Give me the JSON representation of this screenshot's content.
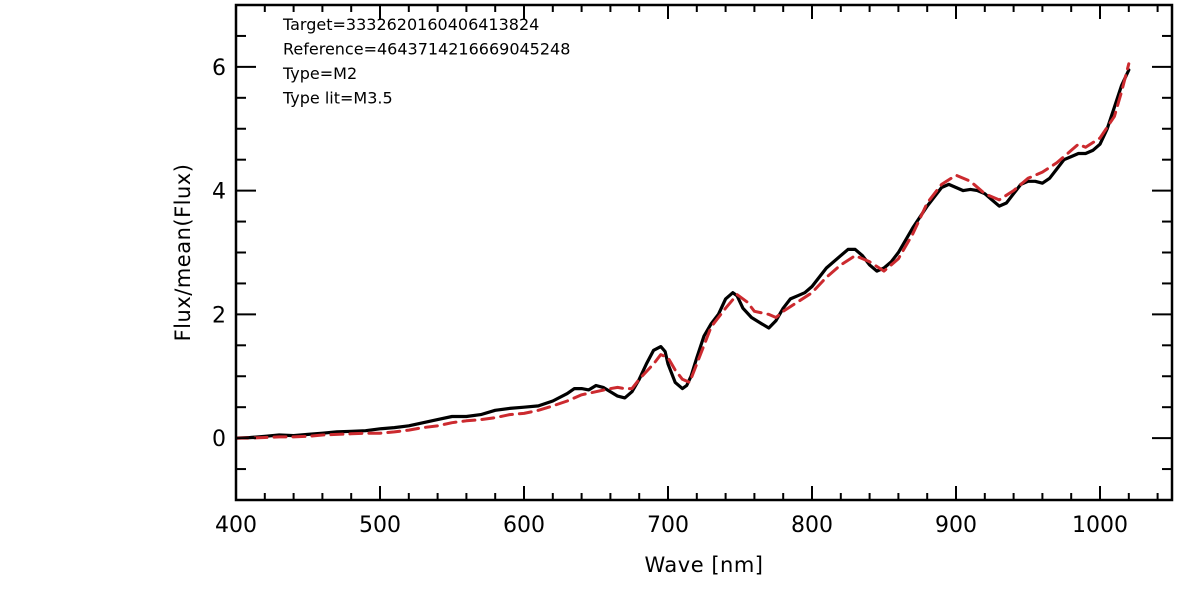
{
  "chart_data": {
    "type": "line",
    "xlabel": "Wave [nm]",
    "ylabel": "Flux/mean(Flux)",
    "xlim": [
      400,
      1050
    ],
    "ylim": [
      -1,
      7
    ],
    "xticks": [
      400,
      500,
      600,
      700,
      800,
      900,
      1000
    ],
    "xtick_labels": [
      "400",
      "500",
      "600",
      "700",
      "800",
      "900",
      "1000"
    ],
    "yticks": [
      0,
      2,
      4,
      6
    ],
    "ytick_labels": [
      "0",
      "2",
      "4",
      "6"
    ],
    "grid": false,
    "legend": "none",
    "annotations": [
      "Target=3332620160406413824",
      "Reference=4643714216669045248",
      "Type=M2",
      "Type lit=M3.5"
    ],
    "series": [
      {
        "style": "solid",
        "color": "#000000",
        "x": [
          400,
          410,
          420,
          430,
          440,
          450,
          460,
          470,
          480,
          490,
          500,
          510,
          520,
          530,
          540,
          550,
          560,
          570,
          580,
          590,
          600,
          610,
          620,
          630,
          635,
          640,
          645,
          650,
          655,
          660,
          665,
          670,
          675,
          680,
          685,
          690,
          695,
          698,
          700,
          705,
          710,
          713,
          716,
          720,
          725,
          730,
          735,
          740,
          745,
          748,
          752,
          758,
          765,
          770,
          775,
          780,
          785,
          790,
          795,
          800,
          810,
          820,
          825,
          830,
          835,
          840,
          845,
          850,
          855,
          860,
          870,
          880,
          890,
          895,
          900,
          905,
          910,
          915,
          920,
          925,
          930,
          935,
          940,
          945,
          950,
          955,
          960,
          965,
          970,
          975,
          980,
          985,
          990,
          995,
          1000,
          1005,
          1010,
          1015,
          1020
        ],
        "y": [
          0.0,
          0.01,
          0.03,
          0.05,
          0.04,
          0.06,
          0.08,
          0.1,
          0.11,
          0.12,
          0.15,
          0.17,
          0.2,
          0.25,
          0.3,
          0.35,
          0.35,
          0.38,
          0.45,
          0.48,
          0.5,
          0.52,
          0.6,
          0.72,
          0.8,
          0.8,
          0.78,
          0.85,
          0.82,
          0.75,
          0.68,
          0.65,
          0.75,
          0.95,
          1.2,
          1.42,
          1.48,
          1.4,
          1.2,
          0.9,
          0.8,
          0.85,
          1.0,
          1.3,
          1.65,
          1.85,
          2.0,
          2.25,
          2.35,
          2.3,
          2.1,
          1.95,
          1.85,
          1.78,
          1.9,
          2.1,
          2.25,
          2.3,
          2.35,
          2.45,
          2.75,
          2.95,
          3.05,
          3.05,
          2.95,
          2.8,
          2.7,
          2.75,
          2.85,
          3.0,
          3.4,
          3.75,
          4.05,
          4.1,
          4.05,
          4.0,
          4.02,
          4.0,
          3.95,
          3.85,
          3.75,
          3.8,
          3.95,
          4.1,
          4.15,
          4.15,
          4.12,
          4.2,
          4.35,
          4.5,
          4.55,
          4.6,
          4.6,
          4.65,
          4.75,
          5.0,
          5.35,
          5.7,
          5.95
        ]
      },
      {
        "style": "dashed",
        "color": "#cc2a2f",
        "x": [
          400,
          410,
          420,
          430,
          440,
          450,
          460,
          470,
          480,
          490,
          500,
          510,
          520,
          530,
          540,
          550,
          560,
          570,
          580,
          590,
          600,
          610,
          620,
          630,
          640,
          650,
          660,
          665,
          670,
          675,
          680,
          690,
          695,
          700,
          705,
          710,
          715,
          720,
          725,
          730,
          740,
          748,
          755,
          760,
          770,
          775,
          780,
          790,
          800,
          810,
          820,
          830,
          840,
          850,
          860,
          870,
          880,
          890,
          900,
          910,
          920,
          930,
          940,
          950,
          960,
          970,
          980,
          985,
          990,
          1000,
          1010,
          1015,
          1020
        ],
        "y": [
          0.0,
          0.0,
          0.01,
          0.02,
          0.02,
          0.03,
          0.05,
          0.06,
          0.07,
          0.08,
          0.08,
          0.1,
          0.13,
          0.17,
          0.2,
          0.25,
          0.28,
          0.3,
          0.33,
          0.38,
          0.4,
          0.45,
          0.52,
          0.6,
          0.7,
          0.75,
          0.8,
          0.82,
          0.8,
          0.8,
          0.95,
          1.2,
          1.35,
          1.3,
          1.1,
          0.95,
          0.9,
          1.2,
          1.5,
          1.8,
          2.1,
          2.32,
          2.2,
          2.05,
          2.0,
          1.95,
          2.05,
          2.2,
          2.35,
          2.6,
          2.8,
          2.95,
          2.85,
          2.7,
          2.9,
          3.3,
          3.8,
          4.1,
          4.25,
          4.15,
          3.95,
          3.85,
          4.0,
          4.2,
          4.3,
          4.45,
          4.65,
          4.75,
          4.7,
          4.85,
          5.2,
          5.6,
          6.05
        ]
      }
    ]
  }
}
